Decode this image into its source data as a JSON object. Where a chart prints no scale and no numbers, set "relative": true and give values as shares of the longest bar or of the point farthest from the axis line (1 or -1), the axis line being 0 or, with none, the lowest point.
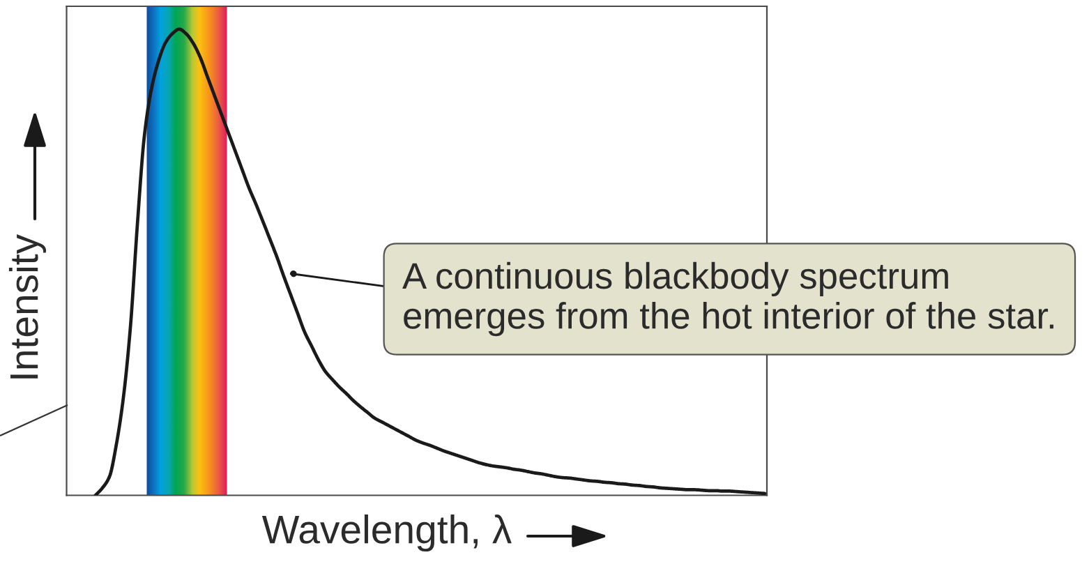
{
  "chart_data": {
    "type": "line",
    "xlabel": "Wavelength, λ",
    "ylabel": "Intensity",
    "relative": true,
    "categories": [
      null,
      null,
      null,
      null,
      null,
      null,
      null,
      null,
      null,
      null,
      null,
      null,
      null,
      null,
      null,
      null,
      null,
      null,
      null,
      null,
      null,
      null,
      null,
      null,
      null,
      null,
      null,
      null,
      null,
      null,
      null,
      null,
      null,
      null,
      null,
      null,
      null,
      null,
      null,
      null,
      null,
      null,
      null,
      null,
      null,
      null,
      null,
      null,
      null,
      null,
      null,
      null,
      null,
      null,
      null,
      null,
      null,
      null,
      null,
      null,
      null,
      null,
      null,
      null,
      null,
      null,
      null,
      null,
      null,
      null,
      null,
      null,
      null,
      null,
      null,
      null,
      null,
      null,
      null,
      null,
      null,
      null,
      null,
      null,
      null,
      null,
      null,
      null,
      null,
      null,
      null,
      null,
      null,
      null,
      null,
      null,
      null,
      null,
      null,
      null,
      null
    ],
    "series": [
      {
        "color": "#1a1a1a",
        "values": [
          null,
          null,
          null,
          null,
          0,
          0.016,
          0.04,
          0.11,
          0.21,
          0.36,
          0.58,
          0.77,
          0.87,
          0.93,
          0.97,
          0.99,
          1,
          0.99,
          0.97,
          0.94,
          0.9,
          0.86,
          0.82,
          0.78,
          0.74,
          0.7,
          0.66,
          0.625,
          0.588,
          0.55,
          0.512,
          0.47,
          0.43,
          0.39,
          0.35,
          0.32,
          0.29,
          0.265,
          0.248,
          0.232,
          0.218,
          0.203,
          0.19,
          0.178,
          0.166,
          0.158,
          0.15,
          0.142,
          0.134,
          0.126,
          0.118,
          0.112,
          0.107,
          0.101,
          0.095,
          0.09,
          0.085,
          0.08,
          0.075,
          0.07,
          0.066,
          0.063,
          0.061,
          0.059,
          0.056,
          0.054,
          0.051,
          0.048,
          0.046,
          0.043,
          0.04,
          0.038,
          0.037,
          0.035,
          0.033,
          0.031,
          0.03,
          0.028,
          0.027,
          0.025,
          0.024,
          0.022,
          0.021,
          0.019,
          0.018,
          0.016,
          0.015,
          0.014,
          0.013,
          0.012,
          0.012,
          0.011,
          0.01,
          0.01,
          0.009,
          0.009,
          0.008,
          0.007,
          0.006,
          0.005,
          0.004
        ]
      }
    ],
    "annotations": [
      "A continuous blackbody spectrum\nemerges from the hot interior of the star."
    ]
  }
}
